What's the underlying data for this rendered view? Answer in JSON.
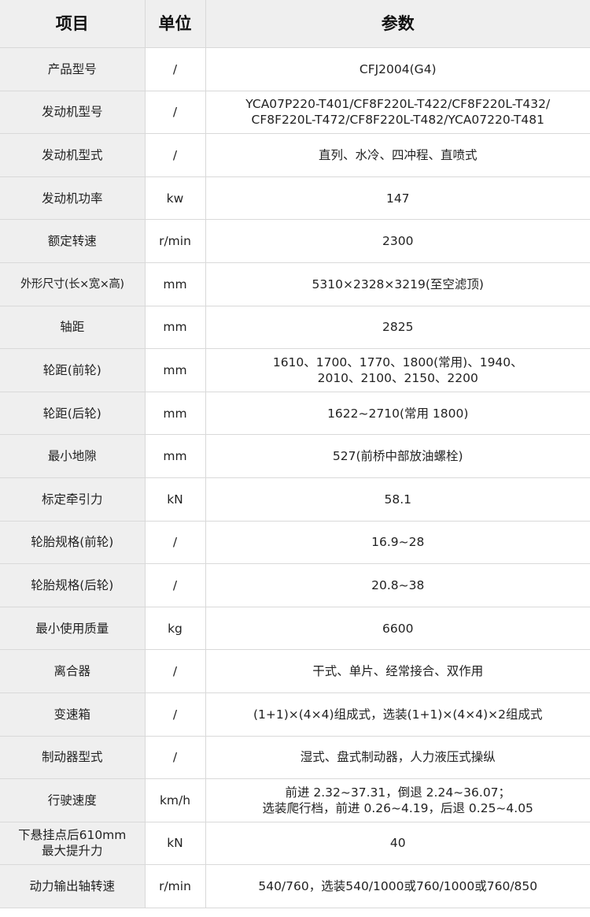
{
  "header": {
    "item": "项目",
    "unit": "单位",
    "param": "参数"
  },
  "rows": [
    {
      "item": "产品型号",
      "unit": "/",
      "value": [
        "CFJ2004(G4)"
      ]
    },
    {
      "item": "发动机型号",
      "unit": "/",
      "value": [
        "YCA07P220-T401/CF8F220L-T422/CF8F220L-T432/",
        "CF8F220L-T472/CF8F220L-T482/YCA07220-T481"
      ]
    },
    {
      "item": "发动机型式",
      "unit": "/",
      "value": [
        "直列、水冷、四冲程、直喷式"
      ]
    },
    {
      "item": "发动机功率",
      "unit": "kw",
      "value": [
        "147"
      ]
    },
    {
      "item": "额定转速",
      "unit": "r/min",
      "value": [
        "2300"
      ]
    },
    {
      "item": "外形尺寸(长×宽×高)",
      "unit": "mm",
      "value": [
        "5310×2328×3219(至空滤顶)"
      ]
    },
    {
      "item": "轴距",
      "unit": "mm",
      "value": [
        "2825"
      ]
    },
    {
      "item": "轮距(前轮)",
      "unit": "mm",
      "value": [
        "1610、1700、1770、1800(常用)、1940、",
        "2010、2100、2150、2200"
      ]
    },
    {
      "item": "轮距(后轮)",
      "unit": "mm",
      "value": [
        "1622~2710(常用 1800)"
      ]
    },
    {
      "item": "最小地隙",
      "unit": "mm",
      "value": [
        "527(前桥中部放油螺栓)"
      ]
    },
    {
      "item": "标定牵引力",
      "unit": "kN",
      "value": [
        "58.1"
      ]
    },
    {
      "item": "轮胎规格(前轮)",
      "unit": "/",
      "value": [
        "16.9~28"
      ]
    },
    {
      "item": "轮胎规格(后轮)",
      "unit": "/",
      "value": [
        "20.8~38"
      ]
    },
    {
      "item": "最小使用质量",
      "unit": "kg",
      "value": [
        "6600"
      ]
    },
    {
      "item": "离合器",
      "unit": "/",
      "value": [
        "干式、单片、经常接合、双作用"
      ]
    },
    {
      "item": "变速箱",
      "unit": "/",
      "value": [
        "(1+1)×(4×4)组成式，选装(1+1)×(4×4)×2组成式"
      ]
    },
    {
      "item": "制动器型式",
      "unit": "/",
      "value": [
        "湿式、盘式制动器，人力液压式操纵"
      ]
    },
    {
      "item": "行驶速度",
      "unit": "km/h",
      "value": [
        "前进 2.32~37.31，倒退 2.24~36.07；",
        "选装爬行档，前进 0.26~4.19，后退 0.25~4.05"
      ]
    },
    {
      "item": "下悬挂点后610mm 最大提升力",
      "item_lines": [
        "下悬挂点后610mm",
        "最大提升力"
      ],
      "unit": "kN",
      "value": [
        "40"
      ]
    },
    {
      "item": "动力输出轴转速",
      "unit": "r/min",
      "value": [
        "540/760，选装540/1000或760/1000或760/850"
      ]
    }
  ]
}
